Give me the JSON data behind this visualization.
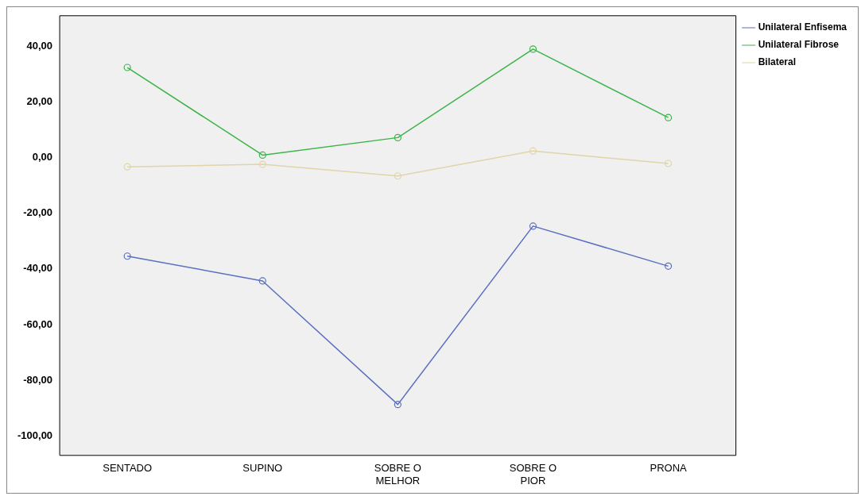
{
  "chart_data": {
    "type": "line",
    "categories": [
      "SENTADO",
      "SUPINO",
      "SOBRE O MELHOR",
      "SOBRE O PIOR",
      "PRONA"
    ],
    "series": [
      {
        "name": "Unilateral Enfisema",
        "color": "#5a6fc0",
        "values": [
          -35.4,
          -44.3,
          -88.7,
          -24.6,
          -39
        ]
      },
      {
        "name": "Unilateral Fibrose",
        "color": "#3cb44a",
        "values": [
          32.4,
          0.9,
          7.2,
          39,
          14.4
        ]
      },
      {
        "name": "Bilateral",
        "color": "#e0d4a8",
        "values": [
          -3.3,
          -2.4,
          -6.6,
          2.4,
          -2.1
        ]
      }
    ],
    "ylim": [
      -107,
      51
    ],
    "yticks": [
      {
        "value": 40,
        "label": "40,00"
      },
      {
        "value": 20,
        "label": "20,00"
      },
      {
        "value": 0,
        "label": "0,00"
      },
      {
        "value": -20,
        "label": "-20,00"
      },
      {
        "value": -40,
        "label": "-40,00"
      },
      {
        "value": -60,
        "label": "-60,00"
      },
      {
        "value": -80,
        "label": "-80,00"
      },
      {
        "value": -100,
        "label": "-100,00"
      }
    ],
    "grid": false,
    "legend": "top right",
    "marker": "circle",
    "line_style": "solid"
  }
}
